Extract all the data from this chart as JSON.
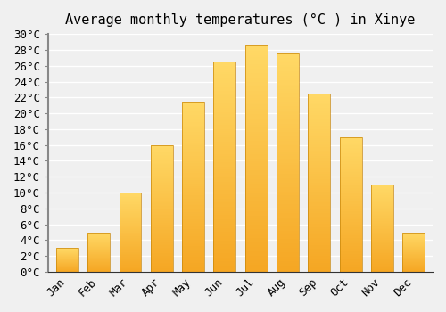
{
  "title": "Average monthly temperatures (°C ) in Xinye",
  "months": [
    "Jan",
    "Feb",
    "Mar",
    "Apr",
    "May",
    "Jun",
    "Jul",
    "Aug",
    "Sep",
    "Oct",
    "Nov",
    "Dec"
  ],
  "values": [
    3,
    5,
    10,
    16,
    21.5,
    26.5,
    28.5,
    27.5,
    22.5,
    17,
    11,
    5
  ],
  "bar_color_bottom": "#F5A623",
  "bar_color_top": "#FFD966",
  "bar_edge_color": "#C8860A",
  "ylim": [
    0,
    30
  ],
  "ytick_step": 2,
  "background_color": "#f0f0f0",
  "grid_color": "#ffffff",
  "title_fontsize": 11,
  "tick_fontsize": 9,
  "font_family": "monospace"
}
